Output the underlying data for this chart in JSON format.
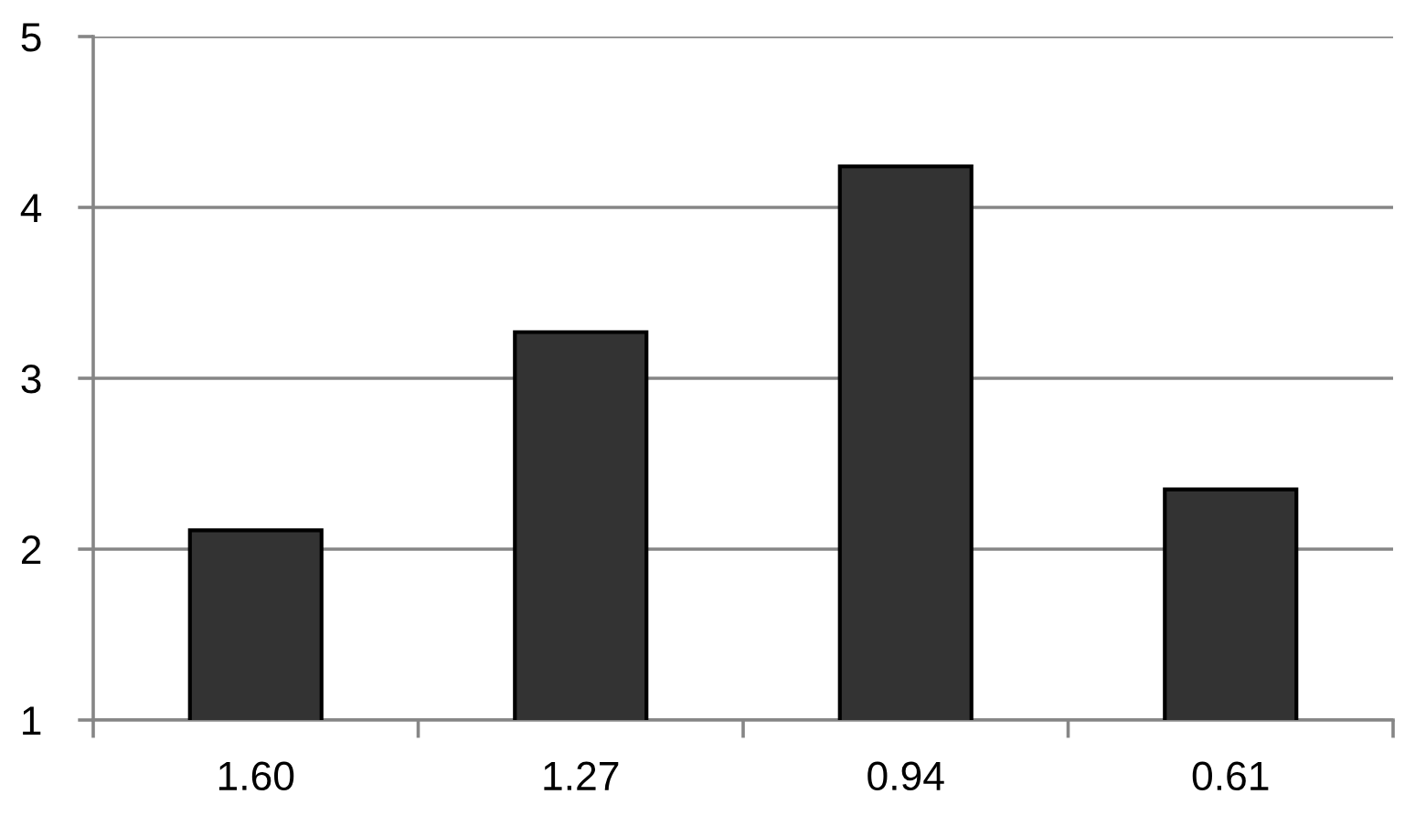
{
  "chart_data": {
    "type": "bar",
    "categories": [
      "1.60",
      "1.27",
      "0.94",
      "0.61"
    ],
    "values": [
      2.11,
      3.27,
      4.24,
      2.35
    ],
    "color": "#333333",
    "ylim": [
      1,
      5
    ],
    "yticks": [
      1,
      2,
      3,
      4,
      5
    ],
    "grid": "y"
  }
}
